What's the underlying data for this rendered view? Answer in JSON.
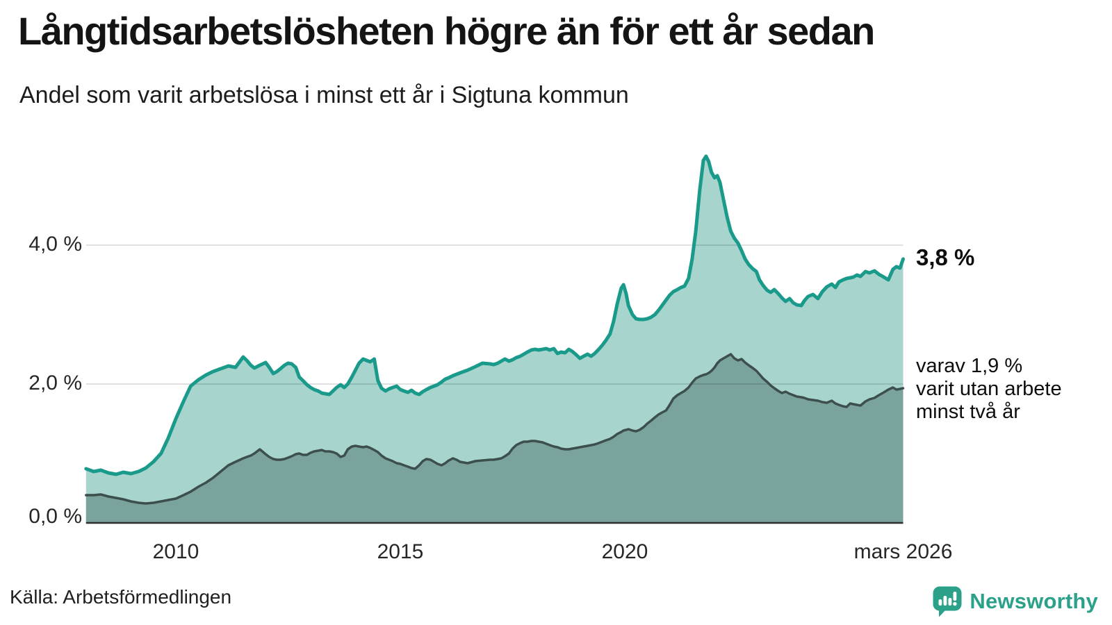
{
  "header": {
    "title": "Långtidsarbetslösheten högre än för ett år sedan",
    "subtitle": "Andel som varit arbetslösa i minst ett år i Sigtuna kommun"
  },
  "annotations": {
    "end_value": "3,8 %",
    "note_lines": [
      "varav 1,9 %",
      "varit utan arbete",
      "minst två år"
    ]
  },
  "source": {
    "label": "Källa: Arbetsförmedlingen"
  },
  "branding": {
    "name": "Newsworthy",
    "color": "#2ba18a",
    "icon": "speech-bubble-bar-chart"
  },
  "chart_data": {
    "type": "area",
    "title": "Andel som varit arbetslösa i minst ett år i Sigtuna kommun",
    "unit": "%",
    "grid": "horizontal-only",
    "legend_position": "none",
    "x_range": [
      2008.0,
      2026.2
    ],
    "ylim": [
      0,
      5.5
    ],
    "x_ticks": [
      {
        "label": "2010",
        "t": 2010
      },
      {
        "label": "2015",
        "t": 2015
      },
      {
        "label": "2020",
        "t": 2020
      },
      {
        "label": "mars 2026",
        "t": 2026.2
      }
    ],
    "y_ticks": [
      {
        "label": "0,0 %",
        "value": 0
      },
      {
        "label": "2,0 %",
        "value": 2
      },
      {
        "label": "4,0 %",
        "value": 4
      }
    ],
    "y_gridlines": [
      2,
      4
    ],
    "series": [
      {
        "name": "Arbetslösa minst ett år",
        "point_index": 1,
        "line_color": "#1a9a8a",
        "fill_color": "#a7d5ce",
        "line_width": 5,
        "end_value": 3.8,
        "end_label": "3,8 %"
      },
      {
        "name": "Arbetslösa minst två år",
        "point_index": 2,
        "line_color": "#3d4f4d",
        "fill_color": "#7aa39d",
        "line_width": 3.5,
        "end_value": 1.9,
        "end_label": "varav 1,9 % varit utan arbete minst två år"
      }
    ],
    "points": [
      [
        2008.0,
        0.78,
        0.4
      ],
      [
        2008.17,
        0.74,
        0.4
      ],
      [
        2008.33,
        0.76,
        0.41
      ],
      [
        2008.5,
        0.72,
        0.38
      ],
      [
        2008.67,
        0.7,
        0.36
      ],
      [
        2008.83,
        0.73,
        0.34
      ],
      [
        2009.0,
        0.71,
        0.31
      ],
      [
        2009.17,
        0.74,
        0.29
      ],
      [
        2009.33,
        0.79,
        0.28
      ],
      [
        2009.5,
        0.88,
        0.29
      ],
      [
        2009.67,
        1.0,
        0.31
      ],
      [
        2009.83,
        1.22,
        0.33
      ],
      [
        2010.0,
        1.5,
        0.35
      ],
      [
        2010.17,
        1.75,
        0.4
      ],
      [
        2010.33,
        1.97,
        0.45
      ],
      [
        2010.5,
        2.06,
        0.52
      ],
      [
        2010.67,
        2.13,
        0.58
      ],
      [
        2010.83,
        2.18,
        0.65
      ],
      [
        2011.0,
        2.22,
        0.74
      ],
      [
        2011.17,
        2.26,
        0.83
      ],
      [
        2011.33,
        2.24,
        0.88
      ],
      [
        2011.5,
        2.39,
        0.93
      ],
      [
        2011.58,
        2.34,
        0.95
      ],
      [
        2011.67,
        2.27,
        0.97
      ],
      [
        2011.75,
        2.23,
        1.0
      ],
      [
        2011.87,
        2.27,
        1.06
      ],
      [
        2012.0,
        2.31,
        0.99
      ],
      [
        2012.08,
        2.24,
        0.95
      ],
      [
        2012.17,
        2.15,
        0.92
      ],
      [
        2012.25,
        2.18,
        0.91
      ],
      [
        2012.33,
        2.22,
        0.91
      ],
      [
        2012.42,
        2.27,
        0.92
      ],
      [
        2012.5,
        2.3,
        0.94
      ],
      [
        2012.58,
        2.29,
        0.96
      ],
      [
        2012.67,
        2.24,
        0.99
      ],
      [
        2012.75,
        2.1,
        1.0
      ],
      [
        2012.83,
        2.05,
        0.98
      ],
      [
        2012.92,
        1.99,
        0.98
      ],
      [
        2013.0,
        1.95,
        1.01
      ],
      [
        2013.08,
        1.92,
        1.03
      ],
      [
        2013.17,
        1.9,
        1.04
      ],
      [
        2013.25,
        1.87,
        1.05
      ],
      [
        2013.33,
        1.86,
        1.03
      ],
      [
        2013.42,
        1.85,
        1.03
      ],
      [
        2013.5,
        1.9,
        1.02
      ],
      [
        2013.58,
        1.95,
        1.0
      ],
      [
        2013.67,
        1.99,
        0.95
      ],
      [
        2013.75,
        1.95,
        0.97
      ],
      [
        2013.83,
        2.0,
        1.06
      ],
      [
        2013.92,
        2.1,
        1.1
      ],
      [
        2014.0,
        2.2,
        1.11
      ],
      [
        2014.08,
        2.3,
        1.1
      ],
      [
        2014.17,
        2.36,
        1.09
      ],
      [
        2014.25,
        2.34,
        1.1
      ],
      [
        2014.33,
        2.32,
        1.08
      ],
      [
        2014.42,
        2.36,
        1.05
      ],
      [
        2014.5,
        2.05,
        1.02
      ],
      [
        2014.58,
        1.94,
        0.97
      ],
      [
        2014.67,
        1.9,
        0.93
      ],
      [
        2014.75,
        1.93,
        0.91
      ],
      [
        2014.83,
        1.95,
        0.89
      ],
      [
        2014.92,
        1.97,
        0.86
      ],
      [
        2015.0,
        1.92,
        0.85
      ],
      [
        2015.08,
        1.9,
        0.83
      ],
      [
        2015.17,
        1.88,
        0.81
      ],
      [
        2015.25,
        1.91,
        0.79
      ],
      [
        2015.33,
        1.87,
        0.78
      ],
      [
        2015.42,
        1.85,
        0.83
      ],
      [
        2015.5,
        1.89,
        0.89
      ],
      [
        2015.58,
        1.92,
        0.92
      ],
      [
        2015.67,
        1.95,
        0.91
      ],
      [
        2015.75,
        1.97,
        0.88
      ],
      [
        2015.83,
        1.99,
        0.85
      ],
      [
        2015.92,
        2.03,
        0.83
      ],
      [
        2016.0,
        2.07,
        0.86
      ],
      [
        2016.08,
        2.09,
        0.9
      ],
      [
        2016.17,
        2.12,
        0.93
      ],
      [
        2016.25,
        2.14,
        0.91
      ],
      [
        2016.33,
        2.16,
        0.88
      ],
      [
        2016.5,
        2.2,
        0.86
      ],
      [
        2016.67,
        2.25,
        0.89
      ],
      [
        2016.83,
        2.3,
        0.9
      ],
      [
        2017.0,
        2.29,
        0.91
      ],
      [
        2017.08,
        2.28,
        0.91
      ],
      [
        2017.17,
        2.3,
        0.92
      ],
      [
        2017.25,
        2.33,
        0.93
      ],
      [
        2017.33,
        2.36,
        0.96
      ],
      [
        2017.42,
        2.33,
        1.0
      ],
      [
        2017.5,
        2.35,
        1.07
      ],
      [
        2017.58,
        2.38,
        1.12
      ],
      [
        2017.67,
        2.4,
        1.15
      ],
      [
        2017.75,
        2.43,
        1.17
      ],
      [
        2017.83,
        2.46,
        1.17
      ],
      [
        2017.92,
        2.49,
        1.18
      ],
      [
        2018.0,
        2.5,
        1.18
      ],
      [
        2018.08,
        2.49,
        1.17
      ],
      [
        2018.17,
        2.5,
        1.16
      ],
      [
        2018.25,
        2.51,
        1.14
      ],
      [
        2018.33,
        2.49,
        1.12
      ],
      [
        2018.42,
        2.51,
        1.1
      ],
      [
        2018.5,
        2.44,
        1.09
      ],
      [
        2018.58,
        2.46,
        1.07
      ],
      [
        2018.67,
        2.45,
        1.06
      ],
      [
        2018.75,
        2.5,
        1.06
      ],
      [
        2018.83,
        2.47,
        1.07
      ],
      [
        2018.92,
        2.42,
        1.08
      ],
      [
        2019.0,
        2.37,
        1.09
      ],
      [
        2019.08,
        2.4,
        1.1
      ],
      [
        2019.17,
        2.43,
        1.11
      ],
      [
        2019.25,
        2.4,
        1.12
      ],
      [
        2019.33,
        2.44,
        1.13
      ],
      [
        2019.42,
        2.5,
        1.15
      ],
      [
        2019.5,
        2.56,
        1.17
      ],
      [
        2019.58,
        2.63,
        1.19
      ],
      [
        2019.67,
        2.72,
        1.21
      ],
      [
        2019.75,
        2.9,
        1.24
      ],
      [
        2019.83,
        3.15,
        1.28
      ],
      [
        2019.92,
        3.38,
        1.31
      ],
      [
        2019.97,
        3.43,
        1.33
      ],
      [
        2020.03,
        3.3,
        1.34
      ],
      [
        2020.08,
        3.13,
        1.35
      ],
      [
        2020.17,
        3.0,
        1.33
      ],
      [
        2020.25,
        2.94,
        1.32
      ],
      [
        2020.33,
        2.93,
        1.34
      ],
      [
        2020.42,
        2.93,
        1.38
      ],
      [
        2020.5,
        2.94,
        1.43
      ],
      [
        2020.58,
        2.96,
        1.47
      ],
      [
        2020.67,
        3.0,
        1.52
      ],
      [
        2020.75,
        3.06,
        1.56
      ],
      [
        2020.83,
        3.13,
        1.59
      ],
      [
        2020.92,
        3.21,
        1.62
      ],
      [
        2021.0,
        3.28,
        1.7
      ],
      [
        2021.08,
        3.33,
        1.79
      ],
      [
        2021.17,
        3.36,
        1.84
      ],
      [
        2021.25,
        3.39,
        1.87
      ],
      [
        2021.33,
        3.41,
        1.9
      ],
      [
        2021.42,
        3.52,
        1.95
      ],
      [
        2021.5,
        3.8,
        2.02
      ],
      [
        2021.58,
        4.2,
        2.08
      ],
      [
        2021.67,
        4.8,
        2.11
      ],
      [
        2021.75,
        5.22,
        2.13
      ],
      [
        2021.81,
        5.28,
        2.14
      ],
      [
        2021.87,
        5.2,
        2.16
      ],
      [
        2021.93,
        5.05,
        2.19
      ],
      [
        2022.0,
        4.97,
        2.24
      ],
      [
        2022.06,
        5.0,
        2.3
      ],
      [
        2022.12,
        4.9,
        2.34
      ],
      [
        2022.2,
        4.65,
        2.37
      ],
      [
        2022.28,
        4.4,
        2.4
      ],
      [
        2022.36,
        4.2,
        2.43
      ],
      [
        2022.44,
        4.1,
        2.37
      ],
      [
        2022.52,
        4.03,
        2.34
      ],
      [
        2022.6,
        3.92,
        2.36
      ],
      [
        2022.68,
        3.8,
        2.31
      ],
      [
        2022.76,
        3.72,
        2.27
      ],
      [
        2022.85,
        3.66,
        2.23
      ],
      [
        2022.93,
        3.62,
        2.19
      ],
      [
        2023.0,
        3.5,
        2.14
      ],
      [
        2023.08,
        3.42,
        2.08
      ],
      [
        2023.17,
        3.35,
        2.03
      ],
      [
        2023.25,
        3.32,
        1.98
      ],
      [
        2023.33,
        3.36,
        1.94
      ],
      [
        2023.42,
        3.3,
        1.9
      ],
      [
        2023.5,
        3.24,
        1.87
      ],
      [
        2023.58,
        3.19,
        1.89
      ],
      [
        2023.67,
        3.23,
        1.86
      ],
      [
        2023.75,
        3.17,
        1.84
      ],
      [
        2023.83,
        3.14,
        1.82
      ],
      [
        2023.93,
        3.13,
        1.81
      ],
      [
        2024.0,
        3.2,
        1.8
      ],
      [
        2024.08,
        3.26,
        1.78
      ],
      [
        2024.19,
        3.29,
        1.77
      ],
      [
        2024.3,
        3.23,
        1.76
      ],
      [
        2024.4,
        3.33,
        1.74
      ],
      [
        2024.5,
        3.4,
        1.73
      ],
      [
        2024.61,
        3.44,
        1.76
      ],
      [
        2024.69,
        3.39,
        1.72
      ],
      [
        2024.77,
        3.47,
        1.7
      ],
      [
        2024.86,
        3.5,
        1.68
      ],
      [
        2024.94,
        3.52,
        1.67
      ],
      [
        2025.02,
        3.53,
        1.72
      ],
      [
        2025.09,
        3.54,
        1.71
      ],
      [
        2025.17,
        3.57,
        1.7
      ],
      [
        2025.25,
        3.55,
        1.69
      ],
      [
        2025.36,
        3.62,
        1.75
      ],
      [
        2025.45,
        3.6,
        1.78
      ],
      [
        2025.56,
        3.63,
        1.8
      ],
      [
        2025.66,
        3.58,
        1.84
      ],
      [
        2025.77,
        3.54,
        1.88
      ],
      [
        2025.87,
        3.5,
        1.92
      ],
      [
        2025.97,
        3.65,
        1.95
      ],
      [
        2026.05,
        3.69,
        1.92
      ],
      [
        2026.13,
        3.67,
        1.93
      ],
      [
        2026.2,
        3.8,
        1.94
      ]
    ]
  }
}
